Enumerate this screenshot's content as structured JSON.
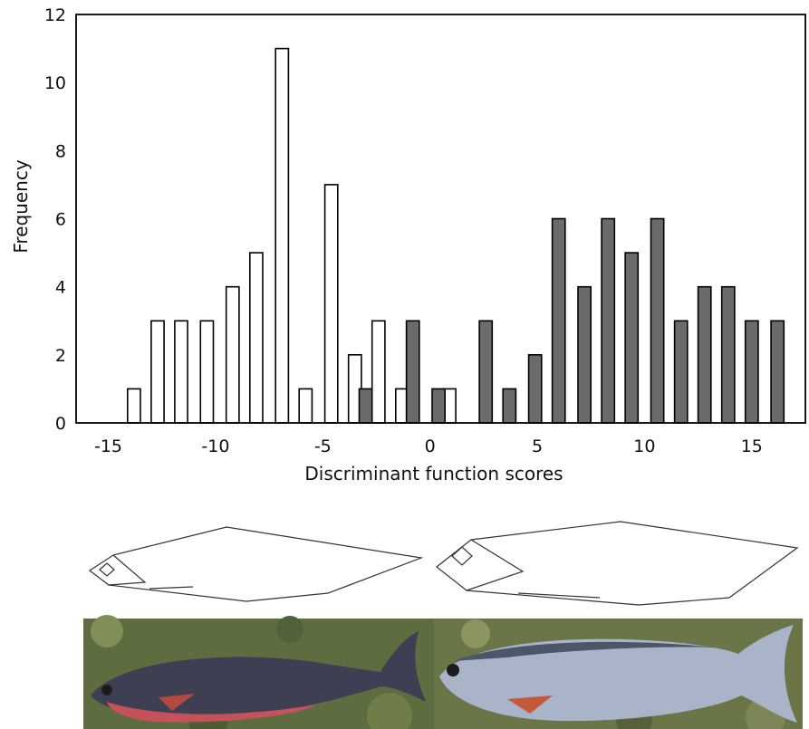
{
  "chart_data": {
    "type": "bar",
    "title": "",
    "xlabel": "Discriminant function scores",
    "ylabel": "Frequency",
    "xlim": [
      -16.5,
      17.5
    ],
    "ylim": [
      0,
      12
    ],
    "xticks": [
      "-15",
      "-10",
      "-5",
      "0",
      "5",
      "10",
      "15"
    ],
    "yticks": [
      "0",
      "2",
      "4",
      "6",
      "8",
      "10",
      "12"
    ],
    "bar_width": 0.6,
    "legend": "none",
    "series": [
      {
        "color": "#ffffff",
        "x": [
          -13.8,
          -12.7,
          -11.6,
          -10.4,
          -9.2,
          -8.1,
          -6.9,
          -5.8,
          -4.6,
          -3.5,
          -2.4,
          -1.3,
          0.9
        ],
        "values": [
          1,
          3,
          3,
          3,
          4,
          5,
          11,
          1,
          7,
          2,
          3,
          1,
          1
        ]
      },
      {
        "color": "#6b6b6b",
        "x": [
          -3.0,
          -0.8,
          0.4,
          2.6,
          3.7,
          4.9,
          6.0,
          7.2,
          8.3,
          9.4,
          10.6,
          11.7,
          12.8,
          13.9,
          15.0,
          16.2
        ],
        "values": [
          1,
          3,
          1,
          3,
          1,
          2,
          6,
          4,
          6,
          5,
          6,
          3,
          4,
          4,
          3,
          3
        ]
      }
    ]
  },
  "illustration": {
    "fish_left": "red-bellied charr",
    "fish_right": "silvery charr"
  }
}
